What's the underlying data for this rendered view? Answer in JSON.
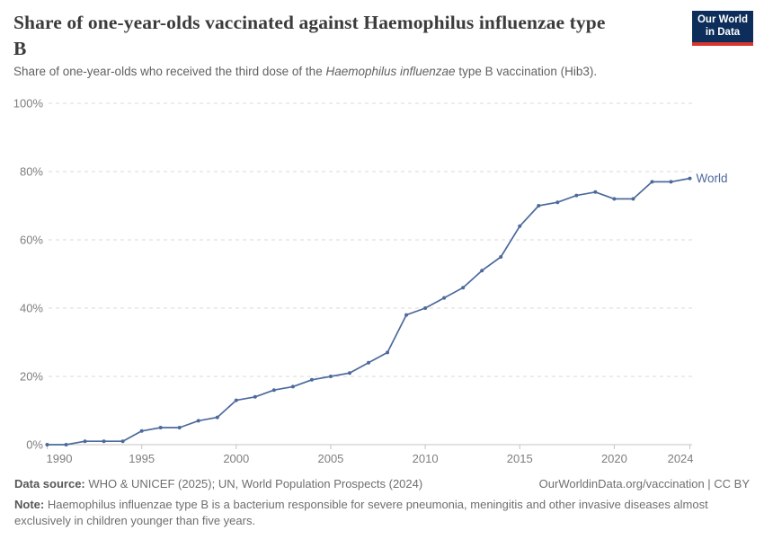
{
  "header": {
    "title_lines": [
      "Share of one-year-olds vaccinated against Haemophilus influenzae type",
      "B"
    ],
    "subtitle_prefix": "Share of one-year-olds who received the third dose of the ",
    "subtitle_italic": "Haemophilus influenzae",
    "subtitle_suffix": " type B vaccination (Hib3).",
    "logo": {
      "line1": "Our World",
      "line2": "in Data",
      "bg_color": "#0d2e5a",
      "accent_color": "#d8352e"
    }
  },
  "chart_data": {
    "type": "line",
    "title": "Share of one-year-olds vaccinated against Haemophilus influenzae type B",
    "xlabel": "",
    "ylabel": "",
    "x": [
      1990,
      1991,
      1992,
      1993,
      1994,
      1995,
      1996,
      1997,
      1998,
      1999,
      2000,
      2001,
      2002,
      2003,
      2004,
      2005,
      2006,
      2007,
      2008,
      2009,
      2010,
      2011,
      2012,
      2013,
      2014,
      2015,
      2016,
      2017,
      2018,
      2019,
      2020,
      2021,
      2022,
      2023,
      2024
    ],
    "series": [
      {
        "name": "World",
        "color": "#4c6a9c",
        "values": [
          0,
          0,
          1,
          1,
          1,
          4,
          5,
          5,
          7,
          8,
          13,
          14,
          16,
          17,
          19,
          20,
          21,
          24,
          27,
          38,
          40,
          43,
          46,
          51,
          55,
          64,
          70,
          71,
          73,
          74,
          72,
          72,
          77,
          77,
          78
        ]
      }
    ],
    "ylim": [
      0,
      100
    ],
    "yticks": [
      0,
      20,
      40,
      60,
      80,
      100
    ],
    "ytick_suffix": "%",
    "xticks": [
      1990,
      1995,
      2000,
      2005,
      2010,
      2015,
      2020,
      2024
    ],
    "grid": "horizontal-dashed",
    "legend": "end-of-line-label",
    "colors": {
      "gridline": "#d9d9d9",
      "axis": "#c4c4c4",
      "tick_label": "#7e7e7e"
    }
  },
  "footer": {
    "datasource_label": "Data source:",
    "datasource_text": " WHO & UNICEF (2025); UN, World Population Prospects (2024)",
    "link": "OurWorldinData.org/vaccination | CC BY",
    "note_label": "Note:",
    "note_text": " Haemophilus influenzae type B is a bacterium responsible for severe pneumonia, meningitis and other invasive diseases almost exclusively in children younger than five years."
  }
}
